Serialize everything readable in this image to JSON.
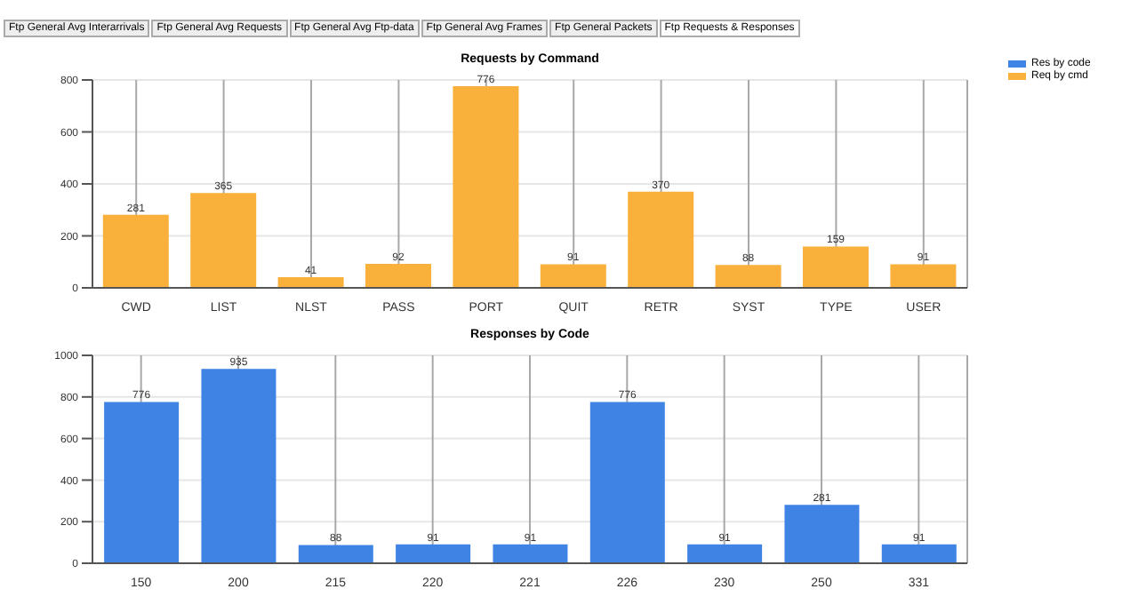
{
  "chart_data": [
    {
      "type": "bar",
      "title": "Requests by Command",
      "categories": [
        "CWD",
        "LIST",
        "NLST",
        "PASS",
        "PORT",
        "QUIT",
        "RETR",
        "SYST",
        "TYPE",
        "USER"
      ],
      "series": [
        {
          "name": "Req by cmd",
          "color": "#f9b13b",
          "values": [
            281,
            365,
            41,
            92,
            776,
            91,
            370,
            88,
            159,
            91
          ]
        }
      ],
      "ylim": [
        0,
        800
      ],
      "yticks": [
        0,
        200,
        400,
        600,
        800
      ],
      "grid": true,
      "data_labels": true,
      "legend": "top right",
      "annotations": [
        "Ftp General Avg Interarrivals",
        "Ftp General Avg Requests",
        "Ftp General Avg Ftp-data",
        "Ftp General Avg Frames",
        "Ftp General Packets",
        "Ftp Requests & Responses"
      ]
    },
    {
      "type": "bar",
      "title": "Responses by Code",
      "categories": [
        "150",
        "200",
        "215",
        "220",
        "221",
        "226",
        "230",
        "250",
        "331"
      ],
      "series": [
        {
          "name": "Res by code",
          "color": "#3f83e4",
          "values": [
            776,
            935,
            88,
            91,
            91,
            776,
            91,
            281,
            91
          ]
        }
      ],
      "ylim": [
        0,
        1000
      ],
      "yticks": [
        0,
        200,
        400,
        600,
        800,
        1000
      ],
      "grid": true,
      "data_labels": true,
      "legend": "top right"
    }
  ]
}
